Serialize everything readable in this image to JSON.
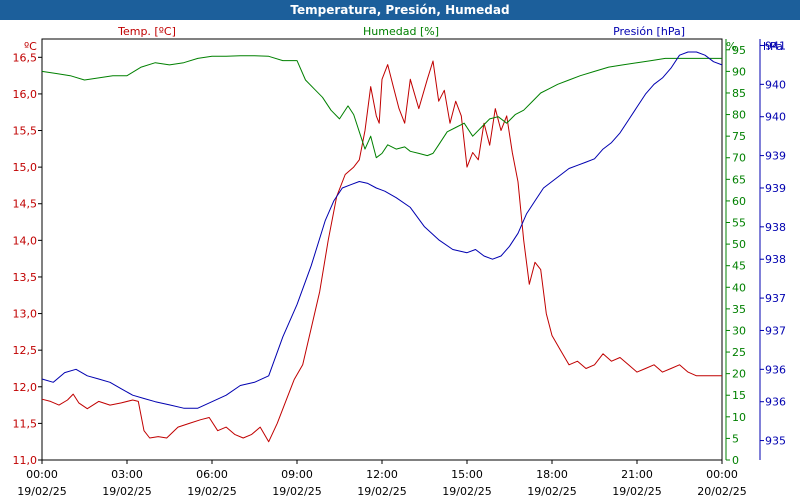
{
  "window": {
    "title": "Temperatura, Presión, Humedad"
  },
  "chart_data": {
    "type": "line",
    "title": "Temperatura, Presión, Humedad",
    "colors": {
      "temp": "#c00000",
      "hum": "#008000",
      "pres": "#0000b0"
    },
    "axes": {
      "temp": {
        "unit": "ºC",
        "label": "Temp. [ºC]",
        "ylim": [
          11.0,
          16.75
        ],
        "ticks": [
          "11,0",
          "11,5",
          "12,0",
          "12,5",
          "13,0",
          "13,5",
          "14,0",
          "14,5",
          "15,0",
          "15,5",
          "16,0",
          "16,5"
        ]
      },
      "hum": {
        "unit": "%",
        "label": "Humedad [%]",
        "ylim": [
          0,
          97.5
        ],
        "ticks": [
          "0",
          "5",
          "10",
          "15",
          "20",
          "25",
          "30",
          "35",
          "40",
          "45",
          "50",
          "55",
          "60",
          "65",
          "70",
          "75",
          "80",
          "85",
          "90",
          "95"
        ]
      },
      "pres": {
        "unit": "hPa",
        "label": "Presión [hPa]",
        "ylim": [
          934.7,
          941.2
        ],
        "ticks": [
          "935",
          "936",
          "936",
          "937",
          "937",
          "938",
          "938",
          "939",
          "939",
          "940",
          "940",
          "941"
        ]
      }
    },
    "x_ticks": [
      {
        "time": "00:00",
        "date": "19/02/25"
      },
      {
        "time": "03:00",
        "date": "19/02/25"
      },
      {
        "time": "06:00",
        "date": "19/02/25"
      },
      {
        "time": "09:00",
        "date": "19/02/25"
      },
      {
        "time": "12:00",
        "date": "19/02/25"
      },
      {
        "time": "15:00",
        "date": "19/02/25"
      },
      {
        "time": "18:00",
        "date": "19/02/25"
      },
      {
        "time": "21:00",
        "date": "19/02/25"
      },
      {
        "time": "00:00",
        "date": "20/02/25"
      }
    ],
    "xlim_hours": [
      0,
      24
    ],
    "series": [
      {
        "name": "Temp. [ºC]",
        "axis": "temp",
        "x": [
          0,
          0.3,
          0.6,
          0.9,
          1.1,
          1.3,
          1.6,
          2.0,
          2.4,
          2.8,
          3.2,
          3.4,
          3.6,
          3.8,
          4.1,
          4.4,
          4.8,
          5.2,
          5.6,
          5.9,
          6.2,
          6.5,
          6.8,
          7.1,
          7.4,
          7.7,
          8.0,
          8.3,
          8.6,
          8.9,
          9.2,
          9.5,
          9.8,
          10.1,
          10.4,
          10.7,
          11.0,
          11.2,
          11.4,
          11.6,
          11.8,
          11.9,
          12.0,
          12.2,
          12.4,
          12.6,
          12.8,
          13.0,
          13.3,
          13.6,
          13.8,
          14.0,
          14.2,
          14.4,
          14.6,
          14.8,
          15.0,
          15.2,
          15.4,
          15.6,
          15.8,
          16.0,
          16.2,
          16.4,
          16.6,
          16.8,
          17.0,
          17.2,
          17.4,
          17.6,
          17.8,
          18.0,
          18.3,
          18.6,
          18.9,
          19.2,
          19.5,
          19.8,
          20.1,
          20.4,
          20.7,
          21.0,
          21.3,
          21.6,
          21.9,
          22.2,
          22.5,
          22.8,
          23.1,
          23.4,
          23.7,
          24.0
        ],
        "values": [
          11.83,
          11.8,
          11.75,
          11.82,
          11.9,
          11.78,
          11.7,
          11.8,
          11.75,
          11.78,
          11.82,
          11.8,
          11.4,
          11.3,
          11.32,
          11.3,
          11.45,
          11.5,
          11.55,
          11.58,
          11.4,
          11.45,
          11.35,
          11.3,
          11.35,
          11.45,
          11.25,
          11.5,
          11.8,
          12.1,
          12.3,
          12.8,
          13.3,
          14.0,
          14.6,
          14.9,
          15.0,
          15.1,
          15.5,
          16.1,
          15.7,
          15.6,
          16.2,
          16.4,
          16.1,
          15.8,
          15.6,
          16.2,
          15.8,
          16.2,
          16.45,
          15.9,
          16.05,
          15.6,
          15.9,
          15.7,
          15.0,
          15.2,
          15.1,
          15.6,
          15.3,
          15.8,
          15.5,
          15.7,
          15.2,
          14.8,
          14.0,
          13.4,
          13.7,
          13.6,
          13.0,
          12.7,
          12.5,
          12.3,
          12.35,
          12.25,
          12.3,
          12.45,
          12.35,
          12.4,
          12.3,
          12.2,
          12.25,
          12.3,
          12.2,
          12.25,
          12.3,
          12.2,
          12.15,
          12.15,
          12.15,
          12.15
        ]
      },
      {
        "name": "Humedad [%]",
        "axis": "hum",
        "x": [
          0,
          0.5,
          1.0,
          1.5,
          2.0,
          2.5,
          3.0,
          3.5,
          4.0,
          4.5,
          5.0,
          5.5,
          6.0,
          6.5,
          7.0,
          7.5,
          8.0,
          8.5,
          9.0,
          9.3,
          9.6,
          9.9,
          10.2,
          10.5,
          10.8,
          11.0,
          11.2,
          11.4,
          11.6,
          11.8,
          12.0,
          12.2,
          12.5,
          12.8,
          13.0,
          13.3,
          13.6,
          13.8,
          14.0,
          14.3,
          14.6,
          14.9,
          15.2,
          15.5,
          15.8,
          16.1,
          16.4,
          16.7,
          17.0,
          17.3,
          17.6,
          17.9,
          18.2,
          18.6,
          19.0,
          19.5,
          20.0,
          20.5,
          21.0,
          21.5,
          22.0,
          22.5,
          23.0,
          23.5,
          24.0
        ],
        "values": [
          90.0,
          89.5,
          89.0,
          88.0,
          88.5,
          89.0,
          89.0,
          91.0,
          92.0,
          91.5,
          92.0,
          93.0,
          93.5,
          93.5,
          93.6,
          93.6,
          93.5,
          92.5,
          92.5,
          88.0,
          86.0,
          84.0,
          81.0,
          79.0,
          82.0,
          80.0,
          76.0,
          72.0,
          75.0,
          70.0,
          71.0,
          73.0,
          72.0,
          72.5,
          71.5,
          71.0,
          70.5,
          71.0,
          73.0,
          76.0,
          77.0,
          78.0,
          75.0,
          77.0,
          79.0,
          79.5,
          78.0,
          80.0,
          81.0,
          83.0,
          85.0,
          86.0,
          87.0,
          88.0,
          89.0,
          90.0,
          91.0,
          91.5,
          92.0,
          92.5,
          93.0,
          93.0,
          93.0,
          93.0,
          93.0
        ]
      },
      {
        "name": "Presión [hPa]",
        "axis": "pres",
        "x": [
          0,
          0.4,
          0.8,
          1.2,
          1.6,
          2.0,
          2.4,
          2.8,
          3.2,
          3.6,
          4.0,
          4.5,
          5.0,
          5.5,
          6.0,
          6.5,
          7.0,
          7.5,
          8.0,
          8.5,
          9.0,
          9.5,
          10.0,
          10.3,
          10.6,
          10.9,
          11.2,
          11.5,
          11.8,
          12.1,
          12.5,
          13.0,
          13.5,
          14.0,
          14.5,
          15.0,
          15.3,
          15.6,
          15.9,
          16.2,
          16.5,
          16.8,
          17.1,
          17.4,
          17.7,
          18.0,
          18.3,
          18.6,
          18.9,
          19.2,
          19.5,
          19.8,
          20.1,
          20.4,
          20.7,
          21.0,
          21.3,
          21.6,
          21.9,
          22.2,
          22.5,
          22.8,
          23.1,
          23.4,
          23.7,
          24.0
        ],
        "values": [
          935.95,
          935.9,
          936.05,
          936.1,
          936.0,
          935.95,
          935.9,
          935.8,
          935.7,
          935.65,
          935.6,
          935.55,
          935.5,
          935.5,
          935.6,
          935.7,
          935.85,
          935.9,
          936.0,
          936.6,
          937.1,
          937.7,
          938.4,
          938.7,
          938.9,
          938.95,
          939.0,
          938.97,
          938.9,
          938.85,
          938.75,
          938.6,
          938.3,
          938.1,
          937.95,
          937.9,
          937.95,
          937.85,
          937.8,
          937.85,
          938.0,
          938.2,
          938.5,
          938.7,
          938.9,
          939.0,
          939.1,
          939.2,
          939.25,
          939.3,
          939.35,
          939.5,
          939.6,
          939.75,
          939.95,
          940.15,
          940.35,
          940.5,
          940.6,
          940.75,
          940.95,
          941.0,
          941.0,
          940.95,
          940.85,
          940.8
        ]
      }
    ]
  }
}
